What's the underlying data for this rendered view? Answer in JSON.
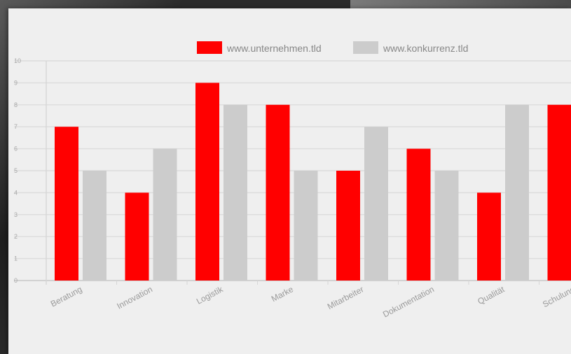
{
  "chart_data": {
    "type": "bar",
    "categories": [
      "Beratung",
      "Innovation",
      "Logistik",
      "Marke",
      "Mitarbeiter",
      "Dokumentation",
      "Qualität",
      "Schulung"
    ],
    "series": [
      {
        "name": "www.unternehmen.tld",
        "color": "#ff0000",
        "values": [
          7,
          4,
          9,
          8,
          5,
          6,
          4,
          8
        ]
      },
      {
        "name": "www.konkurrenz.tld",
        "color": "#cccccc",
        "values": [
          5,
          6,
          8,
          5,
          7,
          5,
          8,
          null
        ]
      }
    ],
    "yticks": [
      "0",
      "1",
      "2",
      "3",
      "4",
      "5",
      "6",
      "7",
      "8",
      "9",
      "10"
    ],
    "ylim": [
      0,
      10
    ],
    "grid": true,
    "legend_position": "top"
  }
}
